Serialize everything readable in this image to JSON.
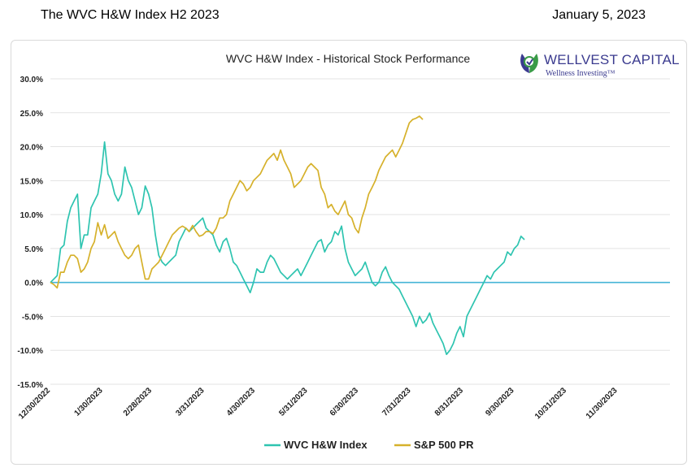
{
  "header": {
    "title": "The WVC H&W Index H2 2023",
    "date": "January 5, 2023"
  },
  "logo": {
    "name": "WELLVEST CAPITAL",
    "tagline": "Wellness Investing™",
    "colors": {
      "text": "#3b3b8f",
      "leaf_green": "#3a9b48",
      "leaf_purple": "#3b3b8f"
    }
  },
  "chart_data": {
    "type": "line",
    "title": "WVC H&W Index - Historical Stock Performance",
    "xlabel": "",
    "ylabel": "",
    "ylim": [
      -15,
      30
    ],
    "yticks": [
      30,
      25,
      20,
      15,
      10,
      5,
      0,
      -5,
      -10,
      -15
    ],
    "ytick_labels": [
      "30.0%",
      "25.0%",
      "20.0%",
      "15.0%",
      "10.0%",
      "5.0%",
      "0.0%",
      "-5.0%",
      "-10.0%",
      "-15.0%"
    ],
    "x_tick_labels": [
      "12/30/2022",
      "1/30/2023",
      "2/28/2023",
      "3/31/2023",
      "4/30/2023",
      "5/31/2023",
      "6/30/2023",
      "7/31/2023",
      "8/31/2023",
      "9/30/2023",
      "10/31/2023",
      "11/30/2023"
    ],
    "x_unit": "days since 12/30/2022",
    "x_tick_values": [
      0,
      31,
      60,
      91,
      121,
      152,
      182,
      213,
      244,
      274,
      305,
      335
    ],
    "x_range": [
      0,
      366
    ],
    "grid": true,
    "legend_position": "bottom",
    "series": [
      {
        "name": "WVC H&W Index",
        "color": "#2ec4b0",
        "points": [
          [
            0,
            0
          ],
          [
            2,
            0.5
          ],
          [
            4,
            1
          ],
          [
            6,
            5
          ],
          [
            8,
            5.5
          ],
          [
            10,
            9
          ],
          [
            12,
            11
          ],
          [
            14,
            12
          ],
          [
            16,
            13
          ],
          [
            18,
            5
          ],
          [
            20,
            7
          ],
          [
            22,
            7
          ],
          [
            24,
            11
          ],
          [
            26,
            12
          ],
          [
            28,
            13
          ],
          [
            30,
            16
          ],
          [
            32,
            20.7
          ],
          [
            34,
            16
          ],
          [
            36,
            15
          ],
          [
            38,
            13
          ],
          [
            40,
            12
          ],
          [
            42,
            13
          ],
          [
            44,
            17
          ],
          [
            46,
            15
          ],
          [
            48,
            14
          ],
          [
            50,
            12
          ],
          [
            52,
            10
          ],
          [
            54,
            11
          ],
          [
            56,
            14.2
          ],
          [
            58,
            13
          ],
          [
            60,
            11
          ],
          [
            62,
            7
          ],
          [
            64,
            4
          ],
          [
            66,
            3
          ],
          [
            68,
            2.5
          ],
          [
            70,
            3
          ],
          [
            72,
            3.5
          ],
          [
            74,
            4
          ],
          [
            76,
            6
          ],
          [
            78,
            7
          ],
          [
            80,
            8
          ],
          [
            82,
            7.5
          ],
          [
            84,
            8
          ],
          [
            86,
            8.5
          ],
          [
            88,
            9
          ],
          [
            90,
            9.5
          ],
          [
            92,
            8
          ],
          [
            94,
            7.5
          ],
          [
            96,
            7
          ],
          [
            98,
            5.5
          ],
          [
            100,
            4.5
          ],
          [
            102,
            6
          ],
          [
            104,
            6.5
          ],
          [
            106,
            5
          ],
          [
            108,
            3
          ],
          [
            110,
            2.5
          ],
          [
            112,
            1.5
          ],
          [
            114,
            0.5
          ],
          [
            116,
            -0.5
          ],
          [
            118,
            -1.5
          ],
          [
            120,
            0
          ],
          [
            122,
            2
          ],
          [
            124,
            1.5
          ],
          [
            126,
            1.5
          ],
          [
            128,
            3
          ],
          [
            130,
            4
          ],
          [
            132,
            3.5
          ],
          [
            134,
            2.5
          ],
          [
            136,
            1.5
          ],
          [
            138,
            1
          ],
          [
            140,
            0.5
          ],
          [
            142,
            1
          ],
          [
            144,
            1.5
          ],
          [
            146,
            2
          ],
          [
            148,
            1
          ],
          [
            150,
            2
          ],
          [
            152,
            3
          ],
          [
            154,
            4
          ],
          [
            156,
            5
          ],
          [
            158,
            6
          ],
          [
            160,
            6.3
          ],
          [
            162,
            4.5
          ],
          [
            164,
            5.5
          ],
          [
            166,
            6
          ],
          [
            168,
            7.5
          ],
          [
            170,
            7
          ],
          [
            172,
            8.3
          ],
          [
            174,
            5
          ],
          [
            176,
            3
          ],
          [
            178,
            2
          ],
          [
            180,
            1
          ],
          [
            182,
            1.5
          ],
          [
            184,
            2
          ],
          [
            186,
            3
          ],
          [
            188,
            1.5
          ],
          [
            190,
            0
          ],
          [
            192,
            -0.5
          ],
          [
            194,
            0
          ],
          [
            196,
            1.5
          ],
          [
            198,
            2.3
          ],
          [
            200,
            1
          ],
          [
            202,
            0
          ],
          [
            204,
            -0.5
          ],
          [
            206,
            -1
          ],
          [
            208,
            -2
          ],
          [
            210,
            -3
          ],
          [
            212,
            -4
          ],
          [
            214,
            -5
          ],
          [
            216,
            -6.5
          ],
          [
            218,
            -5
          ],
          [
            220,
            -6
          ],
          [
            222,
            -5.5
          ],
          [
            224,
            -4.5
          ],
          [
            226,
            -6
          ],
          [
            228,
            -7
          ],
          [
            230,
            -8
          ],
          [
            232,
            -9
          ],
          [
            234,
            -10.6
          ],
          [
            236,
            -10
          ],
          [
            238,
            -9
          ],
          [
            240,
            -7.5
          ],
          [
            242,
            -6.5
          ],
          [
            244,
            -8
          ],
          [
            246,
            -5
          ],
          [
            248,
            -4
          ],
          [
            250,
            -3
          ],
          [
            252,
            -2
          ],
          [
            254,
            -1
          ],
          [
            256,
            0
          ],
          [
            258,
            1
          ],
          [
            260,
            0.5
          ],
          [
            262,
            1.5
          ],
          [
            264,
            2
          ],
          [
            266,
            2.5
          ],
          [
            268,
            3
          ],
          [
            270,
            4.5
          ],
          [
            272,
            4
          ],
          [
            274,
            5
          ],
          [
            276,
            5.5
          ],
          [
            278,
            6.8
          ],
          [
            280,
            6.3
          ]
        ]
      },
      {
        "name": "S&P 500 PR",
        "color": "#d6b12b",
        "points": [
          [
            0,
            0
          ],
          [
            2,
            -0.3
          ],
          [
            4,
            -0.8
          ],
          [
            6,
            1.5
          ],
          [
            8,
            1.5
          ],
          [
            10,
            3
          ],
          [
            12,
            4
          ],
          [
            14,
            4
          ],
          [
            16,
            3.5
          ],
          [
            18,
            1.5
          ],
          [
            20,
            2
          ],
          [
            22,
            3
          ],
          [
            24,
            5
          ],
          [
            26,
            6
          ],
          [
            28,
            8.8
          ],
          [
            30,
            7
          ],
          [
            32,
            8.5
          ],
          [
            34,
            6.5
          ],
          [
            36,
            7
          ],
          [
            38,
            7.5
          ],
          [
            40,
            6
          ],
          [
            42,
            5
          ],
          [
            44,
            4
          ],
          [
            46,
            3.5
          ],
          [
            48,
            4
          ],
          [
            50,
            5
          ],
          [
            52,
            5.5
          ],
          [
            54,
            3
          ],
          [
            56,
            0.5
          ],
          [
            58,
            0.5
          ],
          [
            60,
            2
          ],
          [
            62,
            2.5
          ],
          [
            64,
            3
          ],
          [
            66,
            4
          ],
          [
            68,
            5
          ],
          [
            70,
            6
          ],
          [
            72,
            7
          ],
          [
            74,
            7.5
          ],
          [
            76,
            8
          ],
          [
            78,
            8.3
          ],
          [
            80,
            8
          ],
          [
            82,
            7.5
          ],
          [
            84,
            8.4
          ],
          [
            86,
            7.5
          ],
          [
            88,
            6.8
          ],
          [
            90,
            7
          ],
          [
            92,
            7.5
          ],
          [
            94,
            7.5
          ],
          [
            96,
            7.2
          ],
          [
            98,
            8
          ],
          [
            100,
            9.5
          ],
          [
            102,
            9.5
          ],
          [
            104,
            10
          ],
          [
            106,
            12
          ],
          [
            108,
            13
          ],
          [
            110,
            14
          ],
          [
            112,
            15
          ],
          [
            114,
            14.5
          ],
          [
            116,
            13.5
          ],
          [
            118,
            14
          ],
          [
            120,
            15
          ],
          [
            122,
            15.5
          ],
          [
            124,
            16
          ],
          [
            126,
            17
          ],
          [
            128,
            18
          ],
          [
            130,
            18.5
          ],
          [
            132,
            19
          ],
          [
            134,
            18
          ],
          [
            136,
            19.5
          ],
          [
            138,
            18
          ],
          [
            140,
            17
          ],
          [
            142,
            16
          ],
          [
            144,
            14
          ],
          [
            146,
            14.5
          ],
          [
            148,
            15
          ],
          [
            150,
            16
          ],
          [
            152,
            17
          ],
          [
            154,
            17.5
          ],
          [
            156,
            17
          ],
          [
            158,
            16.5
          ],
          [
            160,
            14
          ],
          [
            162,
            13
          ],
          [
            164,
            11
          ],
          [
            166,
            11.5
          ],
          [
            168,
            10.5
          ],
          [
            170,
            10
          ],
          [
            172,
            11
          ],
          [
            174,
            12
          ],
          [
            176,
            10
          ],
          [
            178,
            9.5
          ],
          [
            180,
            8
          ],
          [
            182,
            7.3
          ],
          [
            184,
            9.5
          ],
          [
            186,
            11
          ],
          [
            188,
            13
          ],
          [
            190,
            14
          ],
          [
            192,
            15
          ],
          [
            194,
            16.5
          ],
          [
            196,
            17.5
          ],
          [
            198,
            18.5
          ],
          [
            200,
            19
          ],
          [
            202,
            19.5
          ],
          [
            204,
            18.5
          ],
          [
            206,
            19.5
          ],
          [
            208,
            20.5
          ],
          [
            210,
            22
          ],
          [
            212,
            23.5
          ],
          [
            214,
            24
          ],
          [
            216,
            24.2
          ],
          [
            218,
            24.5
          ],
          [
            220,
            24
          ]
        ]
      }
    ]
  }
}
